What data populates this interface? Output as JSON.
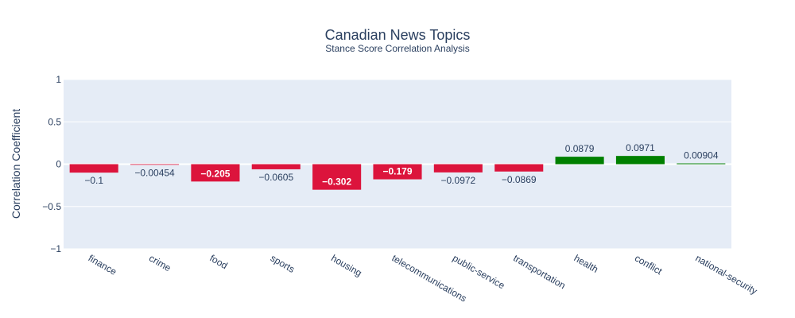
{
  "chart_data": {
    "type": "bar",
    "title": "Canadian News Topics",
    "subtitle": "Stance Score Correlation Analysis",
    "xlabel": "",
    "ylabel": "Correlation Coefficient",
    "ylim": [
      -1,
      1
    ],
    "yticks": [
      {
        "value": 1,
        "label": "1"
      },
      {
        "value": 0.5,
        "label": "0.5"
      },
      {
        "value": 0,
        "label": "0"
      },
      {
        "value": -0.5,
        "label": "−0.5"
      },
      {
        "value": -1,
        "label": "−1"
      }
    ],
    "grid": true,
    "categories": [
      "finance",
      "crime",
      "food",
      "sports",
      "housing",
      "telecommunications",
      "public-service",
      "transportation",
      "health",
      "conflict",
      "national-security"
    ],
    "values": [
      -0.1,
      -0.00454,
      -0.205,
      -0.0605,
      -0.302,
      -0.179,
      -0.0972,
      -0.0869,
      0.0879,
      0.0971,
      0.00904
    ],
    "labels": [
      "−0.1",
      "−0.00454",
      "−0.205",
      "−0.0605",
      "−0.302",
      "−0.179",
      "−0.0972",
      "−0.0869",
      "0.0879",
      "0.0971",
      "0.00904"
    ],
    "colors": {
      "negative": "#dc143c",
      "positive": "#008000",
      "plot_bg": "#e5ecf6",
      "grid": "#ffffff",
      "text": "#2a3f5f"
    }
  }
}
